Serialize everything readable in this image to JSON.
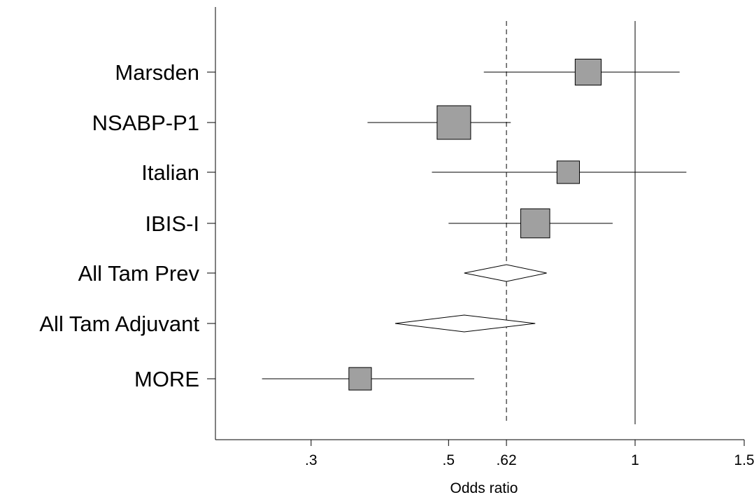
{
  "chart_data": {
    "type": "forest",
    "xlabel": "Odds ratio",
    "x_scale": "log",
    "xlim": [
      0.2,
      1.55
    ],
    "x_ticks": [
      {
        "value": 0.3,
        "label": ".3"
      },
      {
        "value": 0.5,
        "label": ".5"
      },
      {
        "value": 0.62,
        "label": ".62"
      },
      {
        "value": 1,
        "label": "1"
      },
      {
        "value": 1.5,
        "label": "1.5"
      }
    ],
    "reference_lines": [
      {
        "value": 1,
        "style": "solid"
      },
      {
        "value": 0.62,
        "style": "dashed"
      }
    ],
    "rows": [
      {
        "label": "Marsden",
        "kind": "study",
        "estimate": 0.84,
        "ci": [
          0.57,
          1.18
        ],
        "weight": 0.6
      },
      {
        "label": "NSABP-P1",
        "kind": "study",
        "estimate": 0.51,
        "ci": [
          0.37,
          0.63
        ],
        "weight": 1.0
      },
      {
        "label": "Italian",
        "kind": "study",
        "estimate": 0.78,
        "ci": [
          0.47,
          1.21
        ],
        "weight": 0.45
      },
      {
        "label": "IBIS-I",
        "kind": "study",
        "estimate": 0.69,
        "ci": [
          0.5,
          0.92
        ],
        "weight": 0.75
      },
      {
        "label": "All Tam Prev",
        "kind": "pooled",
        "estimate": 0.62,
        "ci": [
          0.53,
          0.72
        ]
      },
      {
        "label": "All Tam Adjuvant",
        "kind": "pooled",
        "estimate": 0.53,
        "ci": [
          0.41,
          0.69
        ]
      },
      {
        "label": "MORE",
        "kind": "study",
        "estimate": 0.36,
        "ci": [
          0.25,
          0.55
        ],
        "weight": 0.45
      }
    ],
    "colors": {
      "box_fill": "#a0a0a0",
      "line": "#000000",
      "diamond_fill": "#ffffff"
    }
  }
}
